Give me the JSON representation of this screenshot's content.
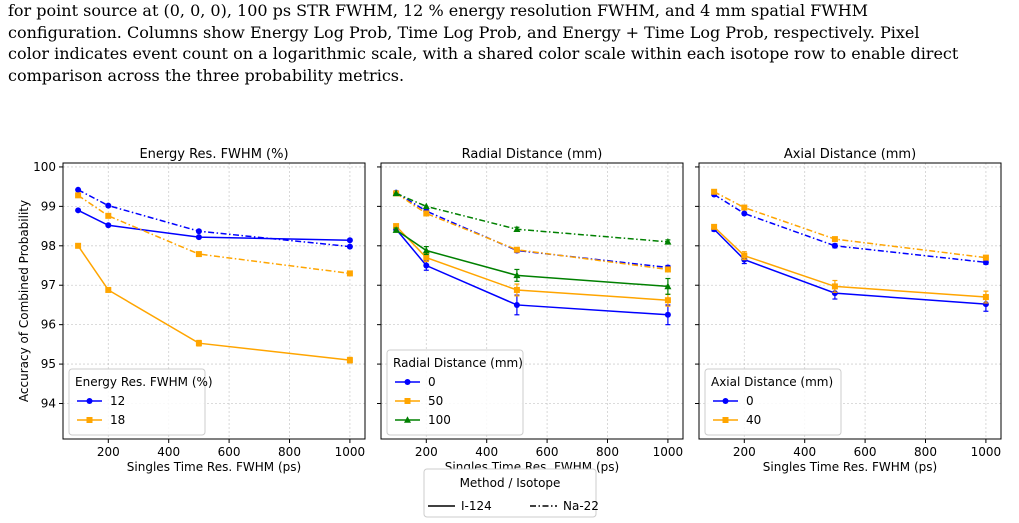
{
  "caption": {
    "lines": [
      "for point source at (0, 0, 0), 100 ps STR FWHM, 12 % energy resolution FWHM, and 4 mm spatial FWHM",
      "configuration. Columns show Energy Log Prob, Time Log Prob, and Energy + Time Log Prob, respectively. Pixel",
      "color indicates event count on a logarithmic scale, with a shared color scale within each isotope row to enable direct",
      "comparison across the three probability metrics."
    ]
  },
  "figure": {
    "colors": {
      "blue": "#0000ff",
      "orange": "#ffa500",
      "green": "#008000"
    },
    "method_legend": {
      "title": "Method / Isotope",
      "entries": [
        {
          "label": "I-124",
          "style": "solid"
        },
        {
          "label": "Na-22",
          "style": "dashdot"
        }
      ]
    }
  },
  "chart_data": [
    {
      "type": "line",
      "title": "Energy Res. FWHM (%)",
      "xlabel": "Singles Time Res. FWHM (ps)",
      "ylabel": "Accuracy of Combined Probability",
      "xlim": [
        50,
        1050
      ],
      "ylim": [
        93.1,
        100.1
      ],
      "xticks": [
        200,
        400,
        600,
        800,
        1000
      ],
      "yticks": [
        94,
        95,
        96,
        97,
        98,
        99,
        100
      ],
      "grid": true,
      "legend_title": "Energy Res. FWHM (%)",
      "legend_position": "lower-left",
      "x": [
        100,
        200,
        500,
        1000
      ],
      "series": [
        {
          "name": "12",
          "color": "#0000ff",
          "marker": "circle",
          "style": "solid",
          "in_legend": true,
          "values": [
            98.9,
            98.52,
            98.22,
            98.14
          ],
          "err": [
            0.03,
            0.03,
            0.03,
            0.03
          ]
        },
        {
          "name": "18",
          "color": "#ffa500",
          "marker": "square",
          "style": "solid",
          "in_legend": true,
          "values": [
            98.0,
            96.88,
            95.53,
            95.1
          ],
          "err": [
            0.04,
            0.04,
            0.07,
            0.07
          ]
        },
        {
          "name": "12",
          "color": "#0000ff",
          "marker": "circle",
          "style": "dashdot",
          "in_legend": false,
          "values": [
            99.42,
            99.02,
            98.37,
            97.98
          ],
          "err": [
            0.03,
            0.03,
            0.03,
            0.03
          ]
        },
        {
          "name": "18",
          "color": "#ffa500",
          "marker": "square",
          "style": "dashdot",
          "in_legend": false,
          "values": [
            99.28,
            98.76,
            97.79,
            97.3
          ],
          "err": [
            0.03,
            0.03,
            0.05,
            0.05
          ]
        }
      ]
    },
    {
      "type": "line",
      "title": "Radial Distance (mm)",
      "xlabel": "Singles Time Res. FWHM (ps)",
      "xlim": [
        50,
        1050
      ],
      "ylim": [
        93.1,
        100.1
      ],
      "xticks": [
        200,
        400,
        600,
        800,
        1000
      ],
      "grid": true,
      "legend_title": "Radial Distance (mm)",
      "legend_position": "lower-left",
      "x": [
        100,
        200,
        500,
        1000
      ],
      "series": [
        {
          "name": "0",
          "color": "#0000ff",
          "marker": "circle",
          "style": "solid",
          "in_legend": true,
          "values": [
            98.42,
            97.5,
            96.5,
            96.25
          ],
          "err": [
            0.05,
            0.12,
            0.25,
            0.25
          ]
        },
        {
          "name": "50",
          "color": "#ffa500",
          "marker": "square",
          "style": "solid",
          "in_legend": true,
          "values": [
            98.5,
            97.7,
            96.88,
            96.62
          ],
          "err": [
            0.05,
            0.1,
            0.15,
            0.15
          ]
        },
        {
          "name": "100",
          "color": "#008000",
          "marker": "triangle",
          "style": "solid",
          "in_legend": true,
          "values": [
            98.4,
            97.88,
            97.25,
            96.97
          ],
          "err": [
            0.05,
            0.1,
            0.15,
            0.2
          ]
        },
        {
          "name": "0",
          "color": "#0000ff",
          "marker": "circle",
          "style": "dashdot",
          "in_legend": false,
          "values": [
            99.35,
            98.88,
            97.88,
            97.45
          ],
          "err": [
            0.03,
            0.05,
            0.05,
            0.05
          ]
        },
        {
          "name": "50",
          "color": "#ffa500",
          "marker": "square",
          "style": "dashdot",
          "in_legend": false,
          "values": [
            99.33,
            98.82,
            97.9,
            97.4
          ],
          "err": [
            0.03,
            0.05,
            0.05,
            0.05
          ]
        },
        {
          "name": "100",
          "color": "#008000",
          "marker": "triangle",
          "style": "dashdot",
          "in_legend": false,
          "values": [
            99.33,
            99.0,
            98.42,
            98.1
          ],
          "err": [
            0.03,
            0.04,
            0.05,
            0.05
          ]
        }
      ]
    },
    {
      "type": "line",
      "title": "Axial Distance (mm)",
      "xlabel": "Singles Time Res. FWHM (ps)",
      "xlim": [
        50,
        1050
      ],
      "ylim": [
        93.1,
        100.1
      ],
      "xticks": [
        200,
        400,
        600,
        800,
        1000
      ],
      "grid": true,
      "legend_title": "Axial Distance (mm)",
      "legend_position": "lower-left",
      "x": [
        100,
        200,
        500,
        1000
      ],
      "series": [
        {
          "name": "0",
          "color": "#0000ff",
          "marker": "circle",
          "style": "solid",
          "in_legend": true,
          "values": [
            98.42,
            97.65,
            96.8,
            96.52
          ],
          "err": [
            0.05,
            0.1,
            0.15,
            0.18
          ]
        },
        {
          "name": "40",
          "color": "#ffa500",
          "marker": "square",
          "style": "solid",
          "in_legend": true,
          "values": [
            98.48,
            97.75,
            96.97,
            96.7
          ],
          "err": [
            0.05,
            0.1,
            0.15,
            0.15
          ]
        },
        {
          "name": "0",
          "color": "#0000ff",
          "marker": "circle",
          "style": "dashdot",
          "in_legend": false,
          "values": [
            99.3,
            98.82,
            98.0,
            97.58
          ],
          "err": [
            0.03,
            0.04,
            0.05,
            0.05
          ]
        },
        {
          "name": "40",
          "color": "#ffa500",
          "marker": "square",
          "style": "dashdot",
          "in_legend": false,
          "values": [
            99.37,
            98.97,
            98.17,
            97.7
          ],
          "err": [
            0.03,
            0.04,
            0.05,
            0.05
          ]
        }
      ]
    }
  ]
}
